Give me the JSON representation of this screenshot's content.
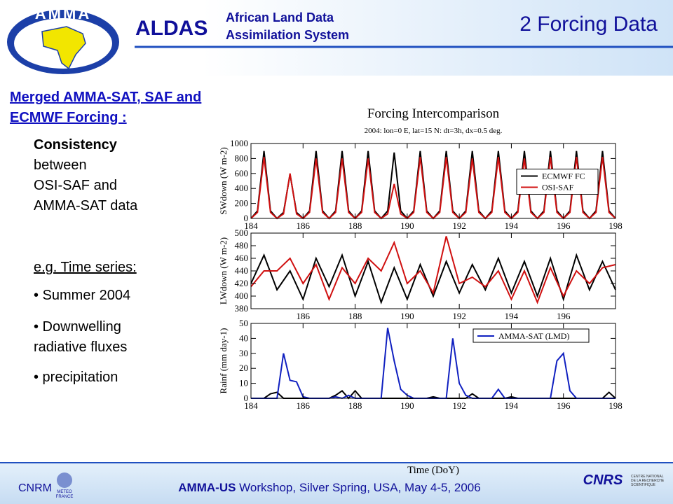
{
  "header": {
    "logo_text": "AMMA",
    "acronym": "ALDAS",
    "name_lines": [
      "African Land Data",
      "Assimilation System"
    ],
    "slide_title": "2 Forcing Data"
  },
  "left": {
    "heading_lines": [
      "Merged AMMA-SAT, SAF and",
      "ECMWF Forcing :"
    ],
    "consistency_bold": "Consistency",
    "consistency_lines": [
      "between",
      "OSI-SAF and",
      "AMMA-SAT data"
    ],
    "example": "e.g. Time series:",
    "bullets": [
      "• Summer 2004",
      "• Downwelling",
      "radiative fluxes",
      "• precipitation"
    ]
  },
  "footer": {
    "cnrm": "CNRM",
    "meteo_lines": [
      "METEO",
      "FRANCE"
    ],
    "event_bold": "AMMA-US",
    "event_rest": " Workshop, Silver Spring, USA, May 4-5, 2006",
    "cnrs": "CNRS",
    "cnrs_lines": [
      "CENTRE NATIONAL",
      "DE LA RECHERCHE",
      "SCIENTIFIQUE"
    ]
  },
  "chart_data": [
    {
      "type": "line",
      "title": "Forcing Intercomparison",
      "subtitle": "2004: lon=0 E, lat=15 N: dt=3h, dx=0.5 deg.",
      "y_label": "SWdown (W m-2)",
      "xlim": [
        184,
        198
      ],
      "xticks": [
        184,
        186,
        188,
        190,
        192,
        194,
        196,
        198
      ],
      "ylim": [
        0,
        1000
      ],
      "yticks": [
        0,
        200,
        400,
        600,
        800,
        1000
      ],
      "legend": "center right",
      "x": [
        184,
        184.25,
        184.5,
        184.75,
        185,
        185.25,
        185.5,
        185.75,
        186,
        186.25,
        186.5,
        186.75,
        187,
        187.25,
        187.5,
        187.75,
        188,
        188.25,
        188.5,
        188.75,
        189,
        189.25,
        189.5,
        189.75,
        190,
        190.25,
        190.5,
        190.75,
        191,
        191.25,
        191.5,
        191.75,
        192,
        192.25,
        192.5,
        192.75,
        193,
        193.25,
        193.5,
        193.75,
        194,
        194.25,
        194.5,
        194.75,
        195,
        195.25,
        195.5,
        195.75,
        196,
        196.25,
        196.5,
        196.75,
        197,
        197.25,
        197.5,
        197.75,
        198
      ],
      "series": [
        {
          "name": "ECMWF FC",
          "color": "#000000",
          "values": [
            0,
            100,
            900,
            100,
            0,
            80,
            590,
            80,
            0,
            100,
            900,
            100,
            0,
            100,
            900,
            100,
            0,
            100,
            900,
            100,
            0,
            100,
            880,
            100,
            0,
            100,
            900,
            100,
            0,
            100,
            900,
            100,
            0,
            100,
            900,
            100,
            0,
            100,
            900,
            100,
            0,
            100,
            900,
            100,
            0,
            100,
            900,
            100,
            0,
            100,
            900,
            100,
            0,
            100,
            900,
            100,
            0
          ]
        },
        {
          "name": "OSI-SAF",
          "color": "#d01010",
          "values": [
            0,
            80,
            820,
            80,
            0,
            60,
            600,
            60,
            0,
            80,
            800,
            80,
            0,
            80,
            800,
            80,
            0,
            80,
            800,
            80,
            0,
            60,
            460,
            60,
            0,
            80,
            820,
            80,
            0,
            80,
            820,
            80,
            0,
            80,
            800,
            80,
            0,
            80,
            820,
            80,
            0,
            80,
            800,
            80,
            0,
            80,
            820,
            80,
            0,
            80,
            820,
            80,
            0,
            80,
            820,
            80,
            0
          ]
        }
      ]
    },
    {
      "type": "line",
      "y_label": "LWdown (W m-2)",
      "xlim": [
        184,
        198
      ],
      "xticks": [
        186,
        188,
        190,
        192,
        194,
        196
      ],
      "ylim": [
        380,
        500
      ],
      "yticks": [
        380,
        400,
        420,
        440,
        460,
        480,
        500
      ],
      "x": [
        184,
        184.5,
        185,
        185.5,
        186,
        186.5,
        187,
        187.5,
        188,
        188.5,
        189,
        189.5,
        190,
        190.5,
        191,
        191.5,
        192,
        192.5,
        193,
        193.5,
        194,
        194.5,
        195,
        195.5,
        196,
        196.5,
        197,
        197.5,
        198
      ],
      "series": [
        {
          "color": "#000000",
          "values": [
            420,
            465,
            410,
            440,
            395,
            460,
            415,
            465,
            400,
            455,
            390,
            445,
            395,
            450,
            400,
            455,
            405,
            450,
            410,
            460,
            405,
            455,
            400,
            460,
            395,
            465,
            410,
            455,
            410
          ]
        },
        {
          "color": "#d01010",
          "values": [
            415,
            440,
            440,
            460,
            420,
            450,
            395,
            445,
            420,
            460,
            440,
            485,
            420,
            440,
            405,
            495,
            420,
            430,
            415,
            440,
            395,
            440,
            390,
            445,
            400,
            440,
            420,
            445,
            450
          ]
        }
      ]
    },
    {
      "type": "line",
      "y_label": "Rainf (mm day-1)",
      "x_label": "Time (DoY)",
      "xlim": [
        184,
        198
      ],
      "xticks": [
        184,
        186,
        188,
        190,
        192,
        194,
        196,
        198
      ],
      "ylim": [
        0,
        50
      ],
      "yticks": [
        0,
        10,
        20,
        30,
        40,
        50
      ],
      "legend": "upper right",
      "x": [
        184,
        184.25,
        184.5,
        184.75,
        185,
        185.25,
        185.5,
        185.75,
        186,
        186.25,
        186.5,
        186.75,
        187,
        187.25,
        187.5,
        187.75,
        188,
        188.25,
        188.5,
        188.75,
        189,
        189.25,
        189.5,
        189.75,
        190,
        190.25,
        190.5,
        190.75,
        191,
        191.25,
        191.5,
        191.75,
        192,
        192.25,
        192.5,
        192.75,
        193,
        193.25,
        193.5,
        193.75,
        194,
        194.25,
        194.5,
        194.75,
        195,
        195.25,
        195.5,
        195.75,
        196,
        196.25,
        196.5,
        196.75,
        197,
        197.25,
        197.5,
        197.75,
        198
      ],
      "series": [
        {
          "color": "#000000",
          "values": [
            0,
            0,
            0,
            3,
            4,
            0,
            0,
            0,
            0,
            0,
            0,
            0,
            0,
            2,
            5,
            0,
            5,
            0,
            0,
            0,
            0,
            0,
            0,
            0,
            0,
            0,
            0,
            0,
            1,
            0,
            0,
            0,
            0,
            0,
            3,
            0,
            0,
            0,
            0,
            0,
            1,
            0,
            0,
            0,
            0,
            0,
            0,
            0,
            0,
            0,
            0,
            0,
            0,
            0,
            0,
            4,
            0
          ]
        },
        {
          "name": "AMMA-SAT (LMD)",
          "color": "#1020c0",
          "values": [
            0,
            0,
            0,
            0,
            0,
            30,
            12,
            11,
            1,
            0,
            0,
            0,
            0,
            1,
            0,
            2,
            0,
            0,
            0,
            0,
            0,
            47,
            25,
            6,
            2,
            0,
            0,
            0,
            0,
            0,
            0,
            40,
            10,
            2,
            0,
            0,
            0,
            0,
            6,
            0,
            0,
            0,
            0,
            0,
            0,
            0,
            0,
            25,
            30,
            5,
            0,
            0,
            0,
            0,
            0,
            0,
            0
          ]
        }
      ]
    }
  ]
}
